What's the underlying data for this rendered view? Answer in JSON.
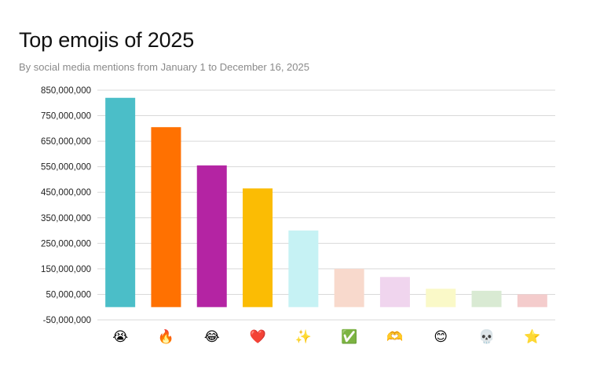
{
  "title": "Top emojis of 2025",
  "subtitle": "By social media mentions from January 1 to December 16, 2025",
  "chart_data": {
    "type": "bar",
    "title": "Top emojis of 2025",
    "subtitle": "By social media mentions from January 1 to December 16, 2025",
    "categories": [
      "😭",
      "🔥",
      "😂",
      "❤️",
      "✨",
      "✅",
      "🫶",
      "😊",
      "💀",
      "⭐"
    ],
    "category_names": [
      "loudly-crying-face",
      "fire",
      "face-with-tears-of-joy",
      "red-heart",
      "sparkles",
      "check-mark-button",
      "heart-hands",
      "smiling-face-with-smiling-eyes",
      "skull",
      "star"
    ],
    "values": [
      820000000,
      705000000,
      555000000,
      465000000,
      300000000,
      150000000,
      118000000,
      72000000,
      64000000,
      50000000
    ],
    "colors": [
      "#4bbec8",
      "#ff7101",
      "#b424a3",
      "#fbbc04",
      "#c6f2f4",
      "#f8d9cc",
      "#f0d5ee",
      "#faf9c8",
      "#d9ead3",
      "#f4cccc"
    ],
    "ylim": [
      -50000000,
      850000000
    ],
    "yticks": [
      850000000,
      750000000,
      650000000,
      550000000,
      450000000,
      350000000,
      250000000,
      150000000,
      50000000,
      -50000000
    ],
    "ytick_labels": [
      "850,000,000",
      "750,000,000",
      "650,000,000",
      "550,000,000",
      "450,000,000",
      "350,000,000",
      "250,000,000",
      "150,000,000",
      "50,000,000",
      "-50,000,000"
    ],
    "xlabel": "",
    "ylabel": "",
    "grid": true,
    "legend": "none"
  }
}
